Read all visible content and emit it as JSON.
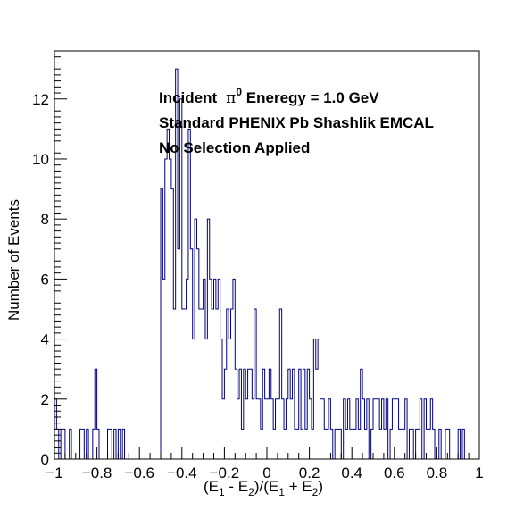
{
  "chart_data": {
    "type": "bar",
    "style": "step-histogram",
    "xlabel": "(E1 - E2)/(E1 + E2)",
    "xlabel_parts": {
      "p1": "(E",
      "s1": "1",
      "p2": " - E",
      "s2": "2",
      "p3": ")/(E",
      "s3": "1",
      "p4": " + E",
      "s4": "2",
      "p5": ")"
    },
    "ylabel": "Number of Events",
    "xlim": [
      -1,
      1
    ],
    "ylim": [
      0,
      13.6
    ],
    "bin_width": 0.01,
    "x_ticks": [
      -1,
      -0.8,
      -0.6,
      -0.4,
      -0.2,
      0,
      0.2,
      0.4,
      0.6,
      0.8,
      1
    ],
    "x_tick_labels": [
      "−1",
      "−0.8",
      "−0.6",
      "−0.4",
      "−0.2",
      "0",
      "0.2",
      "0.4",
      "0.6",
      "0.8",
      "1"
    ],
    "y_ticks": [
      0,
      2,
      4,
      6,
      8,
      10,
      12
    ],
    "y_tick_labels": [
      "0",
      "2",
      "4",
      "6",
      "8",
      "10",
      "12"
    ],
    "line_color": "#000080",
    "annotations": {
      "line1_pre": "Incident",
      "line1_pi": "π",
      "line1_sup": "0",
      "line1_post": " Eneregy = 1.0 GeV",
      "line2": "Standard PHENIX Pb Shashlik EMCAL",
      "line3": "No Selection Applied"
    },
    "bins": [
      [
        -1.0,
        2
      ],
      [
        -0.99,
        1
      ],
      [
        -0.98,
        0
      ],
      [
        -0.97,
        1
      ],
      [
        -0.96,
        1
      ],
      [
        -0.95,
        0
      ],
      [
        -0.94,
        0
      ],
      [
        -0.93,
        1
      ],
      [
        -0.92,
        0
      ],
      [
        -0.91,
        0
      ],
      [
        -0.9,
        0
      ],
      [
        -0.89,
        0
      ],
      [
        -0.88,
        1
      ],
      [
        -0.87,
        1
      ],
      [
        -0.86,
        0
      ],
      [
        -0.85,
        1
      ],
      [
        -0.84,
        0
      ],
      [
        -0.83,
        0
      ],
      [
        -0.82,
        1
      ],
      [
        -0.81,
        3
      ],
      [
        -0.8,
        1
      ],
      [
        -0.79,
        0
      ],
      [
        -0.78,
        0
      ],
      [
        -0.77,
        0
      ],
      [
        -0.76,
        0
      ],
      [
        -0.75,
        1
      ],
      [
        -0.74,
        1
      ],
      [
        -0.73,
        0
      ],
      [
        -0.72,
        1
      ],
      [
        -0.71,
        0
      ],
      [
        -0.7,
        1
      ],
      [
        -0.69,
        0
      ],
      [
        -0.68,
        1
      ],
      [
        -0.67,
        0
      ],
      [
        -0.66,
        0
      ],
      [
        -0.65,
        0
      ],
      [
        -0.64,
        0
      ],
      [
        -0.63,
        0
      ],
      [
        -0.62,
        0
      ],
      [
        -0.61,
        0
      ],
      [
        -0.6,
        0
      ],
      [
        -0.59,
        0
      ],
      [
        -0.58,
        0
      ],
      [
        -0.57,
        0
      ],
      [
        -0.56,
        0
      ],
      [
        -0.55,
        0
      ],
      [
        -0.54,
        0
      ],
      [
        -0.53,
        0
      ],
      [
        -0.52,
        0
      ],
      [
        -0.51,
        0
      ],
      [
        -0.5,
        9
      ],
      [
        -0.49,
        6
      ],
      [
        -0.48,
        10
      ],
      [
        -0.47,
        11
      ],
      [
        -0.46,
        10
      ],
      [
        -0.45,
        9
      ],
      [
        -0.44,
        5
      ],
      [
        -0.43,
        13
      ],
      [
        -0.42,
        7
      ],
      [
        -0.41,
        12
      ],
      [
        -0.4,
        5
      ],
      [
        -0.39,
        5
      ],
      [
        -0.38,
        6
      ],
      [
        -0.37,
        11
      ],
      [
        -0.36,
        7
      ],
      [
        -0.35,
        4
      ],
      [
        -0.34,
        8
      ],
      [
        -0.33,
        7
      ],
      [
        -0.32,
        5
      ],
      [
        -0.31,
        5
      ],
      [
        -0.3,
        6
      ],
      [
        -0.29,
        4
      ],
      [
        -0.28,
        8
      ],
      [
        -0.27,
        6
      ],
      [
        -0.26,
        5
      ],
      [
        -0.25,
        6
      ],
      [
        -0.24,
        5
      ],
      [
        -0.23,
        6
      ],
      [
        -0.22,
        4
      ],
      [
        -0.21,
        2
      ],
      [
        -0.2,
        3
      ],
      [
        -0.19,
        5
      ],
      [
        -0.18,
        4
      ],
      [
        -0.17,
        5
      ],
      [
        -0.16,
        6
      ],
      [
        -0.15,
        3
      ],
      [
        -0.14,
        2
      ],
      [
        -0.13,
        3
      ],
      [
        -0.12,
        1
      ],
      [
        -0.11,
        3
      ],
      [
        -0.1,
        2
      ],
      [
        -0.09,
        3
      ],
      [
        -0.08,
        3
      ],
      [
        -0.07,
        2
      ],
      [
        -0.06,
        5
      ],
      [
        -0.05,
        2
      ],
      [
        -0.04,
        2
      ],
      [
        -0.03,
        1
      ],
      [
        -0.02,
        3
      ],
      [
        -0.01,
        2
      ],
      [
        0.0,
        2
      ],
      [
        0.01,
        3
      ],
      [
        0.02,
        2
      ],
      [
        0.03,
        1
      ],
      [
        0.04,
        2
      ],
      [
        0.05,
        2
      ],
      [
        0.06,
        5
      ],
      [
        0.07,
        2
      ],
      [
        0.08,
        1
      ],
      [
        0.09,
        2
      ],
      [
        0.1,
        3
      ],
      [
        0.11,
        2
      ],
      [
        0.12,
        3
      ],
      [
        0.13,
        1
      ],
      [
        0.14,
        1
      ],
      [
        0.15,
        3
      ],
      [
        0.16,
        1
      ],
      [
        0.17,
        3
      ],
      [
        0.18,
        1
      ],
      [
        0.19,
        3
      ],
      [
        0.2,
        2
      ],
      [
        0.21,
        1
      ],
      [
        0.22,
        4
      ],
      [
        0.23,
        3
      ],
      [
        0.24,
        4
      ],
      [
        0.25,
        2
      ],
      [
        0.26,
        2
      ],
      [
        0.27,
        1
      ],
      [
        0.28,
        1
      ],
      [
        0.29,
        2
      ],
      [
        0.3,
        1
      ],
      [
        0.31,
        0
      ],
      [
        0.32,
        1
      ],
      [
        0.33,
        1
      ],
      [
        0.34,
        1
      ],
      [
        0.35,
        0
      ],
      [
        0.36,
        2
      ],
      [
        0.37,
        1
      ],
      [
        0.38,
        2
      ],
      [
        0.39,
        1
      ],
      [
        0.4,
        1
      ],
      [
        0.41,
        1
      ],
      [
        0.42,
        2
      ],
      [
        0.43,
        1
      ],
      [
        0.44,
        3
      ],
      [
        0.45,
        2
      ],
      [
        0.46,
        1
      ],
      [
        0.47,
        2
      ],
      [
        0.48,
        0
      ],
      [
        0.49,
        1
      ],
      [
        0.5,
        2
      ],
      [
        0.51,
        2
      ],
      [
        0.52,
        2
      ],
      [
        0.53,
        1
      ],
      [
        0.54,
        2
      ],
      [
        0.55,
        1
      ],
      [
        0.56,
        2
      ],
      [
        0.57,
        0
      ],
      [
        0.58,
        1
      ],
      [
        0.59,
        2
      ],
      [
        0.6,
        2
      ],
      [
        0.61,
        2
      ],
      [
        0.62,
        1
      ],
      [
        0.63,
        1
      ],
      [
        0.64,
        1
      ],
      [
        0.65,
        2
      ],
      [
        0.66,
        0
      ],
      [
        0.67,
        1
      ],
      [
        0.68,
        1
      ],
      [
        0.69,
        0
      ],
      [
        0.7,
        1
      ],
      [
        0.71,
        1
      ],
      [
        0.72,
        2
      ],
      [
        0.73,
        0
      ],
      [
        0.74,
        2
      ],
      [
        0.75,
        1
      ],
      [
        0.76,
        1
      ],
      [
        0.77,
        2
      ],
      [
        0.78,
        1
      ],
      [
        0.79,
        0
      ],
      [
        0.8,
        0
      ],
      [
        0.81,
        1
      ],
      [
        0.82,
        0
      ],
      [
        0.83,
        0
      ],
      [
        0.84,
        1
      ],
      [
        0.85,
        1
      ],
      [
        0.86,
        0
      ],
      [
        0.87,
        0
      ],
      [
        0.88,
        0
      ],
      [
        0.89,
        0
      ],
      [
        0.9,
        1
      ],
      [
        0.91,
        0
      ],
      [
        0.92,
        1
      ],
      [
        0.93,
        0
      ],
      [
        0.94,
        0
      ],
      [
        0.95,
        0
      ],
      [
        0.96,
        0
      ],
      [
        0.97,
        0
      ],
      [
        0.98,
        0
      ],
      [
        0.99,
        0
      ]
    ]
  }
}
